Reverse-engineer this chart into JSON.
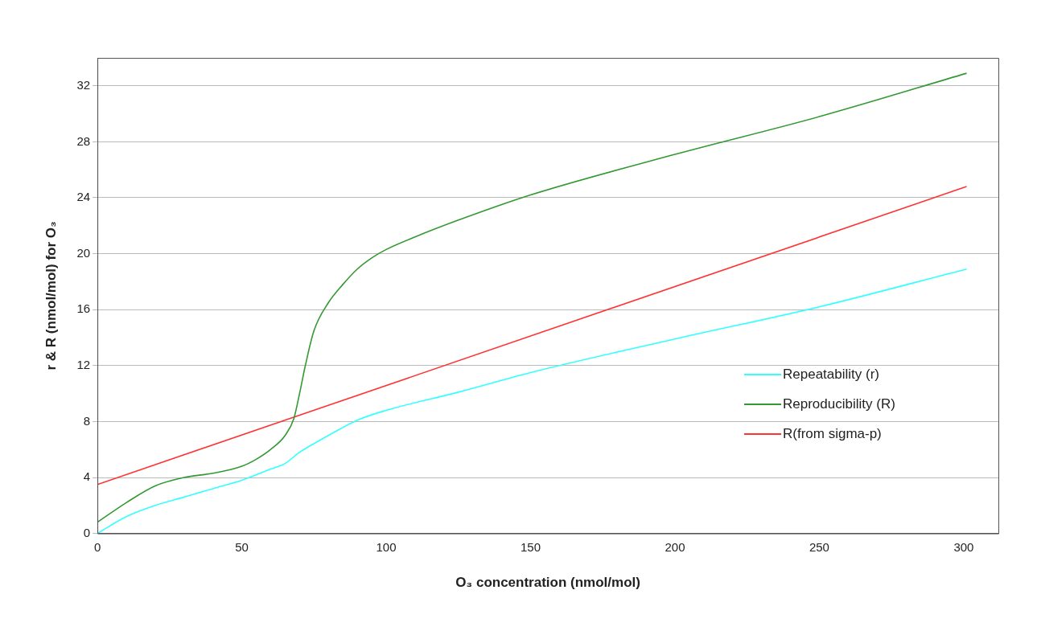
{
  "chart_data": {
    "type": "line",
    "xlabel": "O₃ concentration (nmol/mol)",
    "ylabel": "r & R (nmol/mol) for O₃",
    "xlim": [
      0,
      312
    ],
    "xticks": [
      0,
      50,
      100,
      150,
      200,
      250,
      300
    ],
    "ylim": [
      0,
      34
    ],
    "yticks": [
      0,
      4,
      8,
      12,
      16,
      20,
      24,
      28,
      32
    ],
    "grid": "y",
    "legend": "right",
    "marker": "none",
    "line_style": "solid",
    "series": [
      {
        "name": "Repeatability (r)",
        "color": "#33ffff",
        "x": [
          0,
          10,
          20,
          30,
          40,
          50,
          60,
          65,
          70,
          80,
          90,
          100,
          125,
          150,
          200,
          250,
          301
        ],
        "values": [
          0,
          1.2,
          2.0,
          2.6,
          3.2,
          3.8,
          4.6,
          5.0,
          5.8,
          7.0,
          8.1,
          8.8,
          10.1,
          11.5,
          13.9,
          16.2,
          18.9
        ]
      },
      {
        "name": "Reproducibility (R)",
        "color": "#339933",
        "x": [
          0,
          10,
          20,
          30,
          40,
          50,
          55,
          60,
          65,
          68,
          70,
          72,
          75,
          80,
          85,
          90,
          95,
          100,
          110,
          125,
          150,
          200,
          250,
          301
        ],
        "values": [
          0.8,
          2.2,
          3.4,
          4.0,
          4.3,
          4.8,
          5.3,
          6.0,
          7.0,
          8.2,
          10,
          12,
          14.5,
          16.5,
          17.8,
          18.9,
          19.7,
          20.3,
          21.2,
          22.4,
          24.2,
          27.1,
          29.8,
          32.9
        ]
      },
      {
        "name": "R(from sigma-p)",
        "color": "#ff3333",
        "x": [
          0,
          301
        ],
        "values": [
          3.5,
          24.8
        ]
      }
    ]
  }
}
